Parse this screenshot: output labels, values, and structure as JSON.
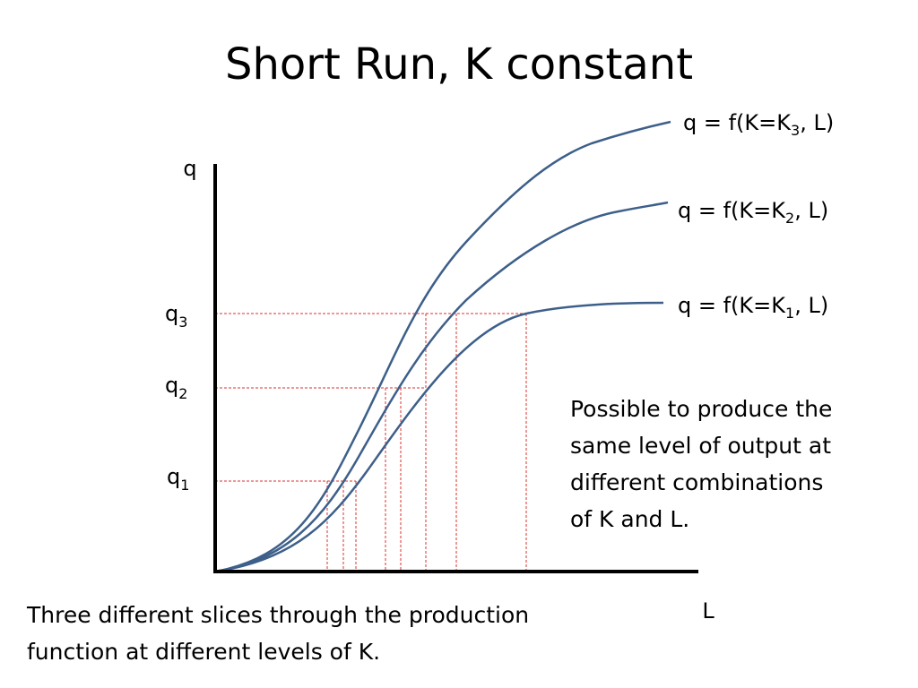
{
  "title": "Short Run, K constant",
  "axes": {
    "y_label": "q",
    "x_label": "L"
  },
  "levels": [
    {
      "main": "q",
      "sub": "1"
    },
    {
      "main": "q",
      "sub": "2"
    },
    {
      "main": "q",
      "sub": "3"
    }
  ],
  "curves": [
    {
      "before": "q = f(K=K",
      "sub": "3",
      "after": ", L)"
    },
    {
      "before": "q = f(K=K",
      "sub": "2",
      "after": ", L)"
    },
    {
      "before": "q = f(K=K",
      "sub": "1",
      "after": ", L)"
    }
  ],
  "note": [
    "Possible to produce the",
    "same level of output at",
    "different combinations",
    "of K and L."
  ],
  "caption": [
    "Three different slices through the production",
    "function at different levels of K."
  ]
}
